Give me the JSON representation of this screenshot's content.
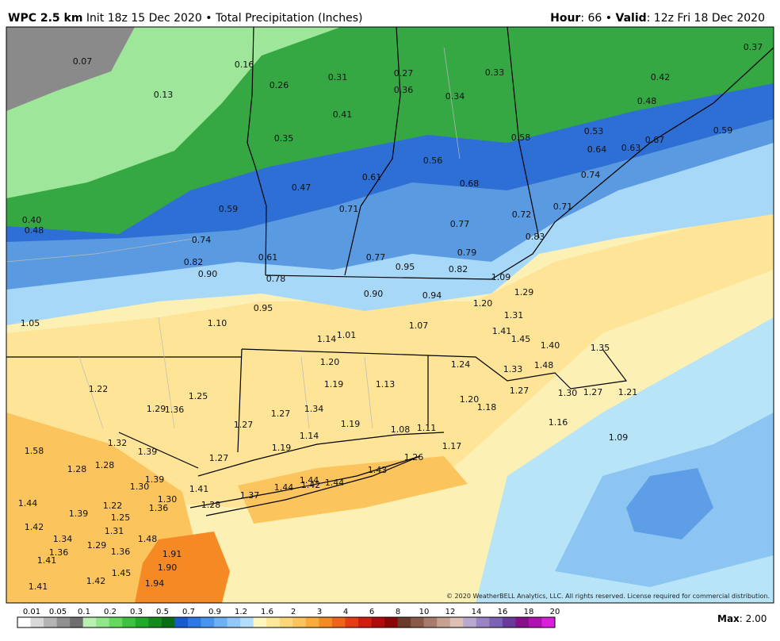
{
  "header": {
    "model": "WPC 2.5 km",
    "init": "Init 18z 15 Dec 2020",
    "separator": "•",
    "product": "Total Precipitation (Inches)",
    "hour_label": "Hour",
    "hour_value": ": 66",
    "separator2": "•",
    "valid_label": "Valid",
    "valid_value": ": 12z Fri 18 Dec 2020"
  },
  "map": {
    "labels": [
      "0.07",
      "0.16",
      "0.26",
      "0.31",
      "0.27",
      "0.33",
      "0.37",
      "0.42",
      "0.13",
      "0.36",
      "0.34",
      "0.48",
      "0.41",
      "0.53",
      "0.58",
      "0.59",
      "0.35",
      "0.64",
      "0.63",
      "0.67",
      "0.56",
      "0.74",
      "0.61",
      "0.68",
      "0.47",
      "0.59",
      "0.71",
      "0.72",
      "0.71",
      "0.40",
      "0.48",
      "0.77",
      "0.83",
      "0.74",
      "0.79",
      "0.77",
      "0.61",
      "0.82",
      "0.95",
      "0.82",
      "0.90",
      "0.78",
      "1.09",
      "1.29",
      "0.90",
      "0.94",
      "1.20",
      "0.95",
      "1.31",
      "1.05",
      "1.10",
      "1.07",
      "1.41",
      "1.45",
      "1.14",
      "1.01",
      "1.40",
      "1.35",
      "1.20",
      "1.24",
      "1.48",
      "1.33",
      "1.19",
      "1.13",
      "1.22",
      "1.27",
      "1.30",
      "1.27",
      "1.21",
      "1.25",
      "1.29",
      "1.36",
      "1.34",
      "1.27",
      "1.20",
      "1.18",
      "1.19",
      "1.27",
      "1.16",
      "1.08",
      "1.11",
      "1.14",
      "1.09",
      "1.32",
      "1.39",
      "1.58",
      "1.19",
      "1.17",
      "1.26",
      "1.27",
      "1.28",
      "1.28",
      "1.43",
      "1.39",
      "1.30",
      "1.44",
      "1.42",
      "1.44",
      "1.44",
      "1.41",
      "1.37",
      "1.30",
      "1.44",
      "1.22",
      "1.36",
      "1.28",
      "1.39",
      "1.25",
      "1.42",
      "1.31",
      "1.34",
      "1.48",
      "1.29",
      "1.36",
      "1.36",
      "1.91",
      "1.41",
      "1.90",
      "1.45",
      "1.42",
      "1.94",
      "1.41"
    ],
    "copyright": "© 2020 WeatherBELL Analytics, LLC. All rights reserved. License required for commercial distribution."
  },
  "legend": {
    "ticks": [
      "0.01",
      "0.05",
      "0.1",
      "0.2",
      "0.3",
      "0.5",
      "0.7",
      "0.9",
      "1.2",
      "1.6",
      "2",
      "3",
      "4",
      "6",
      "8",
      "10",
      "12",
      "14",
      "16",
      "18",
      "20"
    ],
    "colors": [
      "#ffffff",
      "#d8d8d8",
      "#b4b4b4",
      "#909090",
      "#6e6e6e",
      "#b8f0b0",
      "#90e688",
      "#66d860",
      "#40c040",
      "#22a82a",
      "#158a1e",
      "#0a6e16",
      "#1a5ad0",
      "#2e78e4",
      "#4a94ec",
      "#6eb0f2",
      "#92c8f6",
      "#b4ddfa",
      "#fff6c0",
      "#fde89a",
      "#fcd77a",
      "#fbc45c",
      "#f9ac3c",
      "#f58a24",
      "#f0641a",
      "#e43c14",
      "#d01e10",
      "#b00a0a",
      "#8a0606",
      "#6a3a2a",
      "#8a5a48",
      "#a87c6c",
      "#c6a090",
      "#dcc0b4",
      "#b8a8d0",
      "#9a84c4",
      "#7c62b4",
      "#6a3a9a",
      "#86108a",
      "#b010b0",
      "#d820d8"
    ],
    "max_label": "Max",
    "max_value": ": 2.00"
  }
}
